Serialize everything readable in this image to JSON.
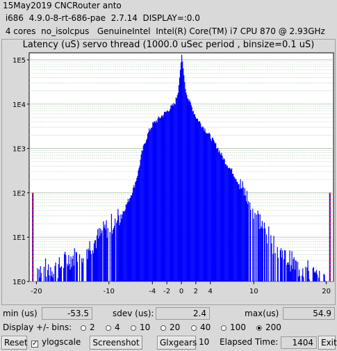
{
  "header": {
    "line1": "15May2019 CNCRouter anto",
    "line2": " i686  4.9.0-8-rt-686-pae  2.7.14  DISPLAY=:0.0",
    "line3": " 4 cores  no_isolcpus   GenuineIntel  Intel(R) Core(TM) i7 CPU 870 @ 2.93GHz"
  },
  "chart_data": {
    "type": "area",
    "title": "Latency (uS) servo thread (1000.0 uSec period , binsize=0.1 uS)",
    "xlim": [
      -21,
      21
    ],
    "x_ticks": [
      -20,
      -10,
      -4,
      -2,
      0,
      2,
      4,
      10,
      20
    ],
    "y_scale": "log",
    "ylim": [
      1,
      100000
    ],
    "y_ticks": [
      "1E0",
      "1E1",
      "1E2",
      "1E3",
      "1E4",
      "1E5"
    ],
    "y_tick_values": [
      1,
      10,
      100,
      1000,
      10000,
      100000
    ],
    "grid": true,
    "fill_color": "#0000ff",
    "marker_color": "#ff0000",
    "envelope": [
      {
        "x": -20.0,
        "y": 1
      },
      {
        "x": -19.9,
        "y": 2
      },
      {
        "x": -18.5,
        "y": 2
      },
      {
        "x": -17.0,
        "y": 2
      },
      {
        "x": -16.0,
        "y": 3
      },
      {
        "x": -14.0,
        "y": 4
      },
      {
        "x": -12.0,
        "y": 8
      },
      {
        "x": -10.5,
        "y": 15
      },
      {
        "x": -9.0,
        "y": 25
      },
      {
        "x": -8.0,
        "y": 40
      },
      {
        "x": -7.0,
        "y": 90
      },
      {
        "x": -6.5,
        "y": 150
      },
      {
        "x": -6.0,
        "y": 300
      },
      {
        "x": -5.5,
        "y": 800
      },
      {
        "x": -5.0,
        "y": 1500
      },
      {
        "x": -4.5,
        "y": 2500
      },
      {
        "x": -4.0,
        "y": 3500
      },
      {
        "x": -3.0,
        "y": 5000
      },
      {
        "x": -2.0,
        "y": 7000
      },
      {
        "x": -1.0,
        "y": 10000
      },
      {
        "x": -0.5,
        "y": 18000
      },
      {
        "x": 0.0,
        "y": 130000
      },
      {
        "x": 0.5,
        "y": 22000
      },
      {
        "x": 1.0,
        "y": 12000
      },
      {
        "x": 2.0,
        "y": 5000
      },
      {
        "x": 3.0,
        "y": 3000
      },
      {
        "x": 4.0,
        "y": 1800
      },
      {
        "x": 5.0,
        "y": 1000
      },
      {
        "x": 6.0,
        "y": 500
      },
      {
        "x": 7.0,
        "y": 300
      },
      {
        "x": 8.0,
        "y": 150
      },
      {
        "x": 9.0,
        "y": 80
      },
      {
        "x": 10.0,
        "y": 40
      },
      {
        "x": 11.0,
        "y": 20
      },
      {
        "x": 12.0,
        "y": 10
      },
      {
        "x": 13.0,
        "y": 6
      },
      {
        "x": 14.0,
        "y": 4
      },
      {
        "x": 15.0,
        "y": 3
      },
      {
        "x": 16.0,
        "y": 2
      },
      {
        "x": 17.0,
        "y": 2
      },
      {
        "x": 18.0,
        "y": 1.5
      },
      {
        "x": 19.0,
        "y": 1
      },
      {
        "x": 20.0,
        "y": 1
      }
    ],
    "edge_markers": [
      {
        "x": -20.5,
        "y": 100
      },
      {
        "x": 20.5,
        "y": 100
      }
    ]
  },
  "stats": {
    "min_label": "min (us)",
    "min_value": "-53.5",
    "sdev_label": "sdev (us):",
    "sdev_value": "2.4",
    "max_label": "max(us)",
    "max_value": "54.9"
  },
  "bins": {
    "label": "Display +/- bins:",
    "options": [
      "2",
      "4",
      "10",
      "20",
      "40",
      "100",
      "200"
    ],
    "selected": "200"
  },
  "toolbar": {
    "reset_label": "Reset",
    "ylogscale_label": "ylogscale",
    "ylogscale_checked": true,
    "screenshot_label": "Screenshot",
    "glxgears_label": "Glxgears",
    "glxgears_value": "10",
    "elapsed_label": "Elapsed Time:",
    "elapsed_value": "1404",
    "exit_label": "Exit"
  }
}
